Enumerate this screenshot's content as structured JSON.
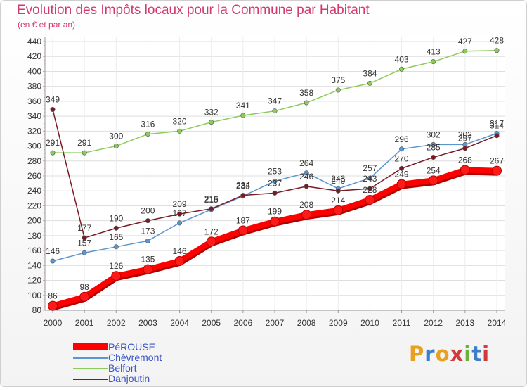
{
  "page": {
    "title": "Evolution des Impôts locaux pour la Commune par Habitant",
    "subtitle": "(en € et par an)"
  },
  "logo": {
    "text": "Proxiti",
    "letter_colors": [
      "#e8a020",
      "#3a7fc8",
      "#e8a020",
      "#d23a3a",
      "#6ab23a",
      "#3a7fc8",
      "#d23a3a"
    ]
  },
  "chart_data": {
    "type": "line",
    "title": "Evolution des Impôts locaux pour la Commune par Habitant",
    "subtitle": "(en € et par an)",
    "xlabel": "",
    "ylabel": "",
    "categories": [
      "2000",
      "2001",
      "2002",
      "2003",
      "2004",
      "2005",
      "2006",
      "2007",
      "2008",
      "2009",
      "2010",
      "2011",
      "2012",
      "2013",
      "2014"
    ],
    "y_ticks": [
      "80",
      "100",
      "120",
      "140",
      "160",
      "180",
      "200",
      "220",
      "240",
      "260",
      "280",
      "300",
      "320",
      "340",
      "360",
      "380",
      "400",
      "420",
      "440"
    ],
    "ylim": [
      80,
      440
    ],
    "grid": true,
    "legend_position": "bottom-left",
    "series": [
      {
        "name": "PéROUSE",
        "color": "#ff0000",
        "style": "thick",
        "values": [
          86,
          98,
          126,
          135,
          146,
          172,
          187,
          199,
          208,
          214,
          228,
          249,
          254,
          268,
          267
        ]
      },
      {
        "name": "Chèvremont",
        "color": "#5a96d0",
        "style": "thin",
        "values": [
          146,
          157,
          165,
          173,
          197,
          215,
          233,
          253,
          264,
          243,
          257,
          296,
          302,
          302,
          317
        ]
      },
      {
        "name": "Belfort",
        "color": "#8ccc5a",
        "style": "thin",
        "values": [
          291,
          291,
          300,
          316,
          320,
          332,
          341,
          347,
          358,
          375,
          384,
          403,
          413,
          427,
          428
        ]
      },
      {
        "name": "Danjoutin",
        "color": "#7a1a24",
        "style": "thin",
        "values": [
          349,
          177,
          190,
          200,
          209,
          216,
          234,
          237,
          246,
          240,
          243,
          270,
          285,
          297,
          314
        ]
      }
    ]
  }
}
